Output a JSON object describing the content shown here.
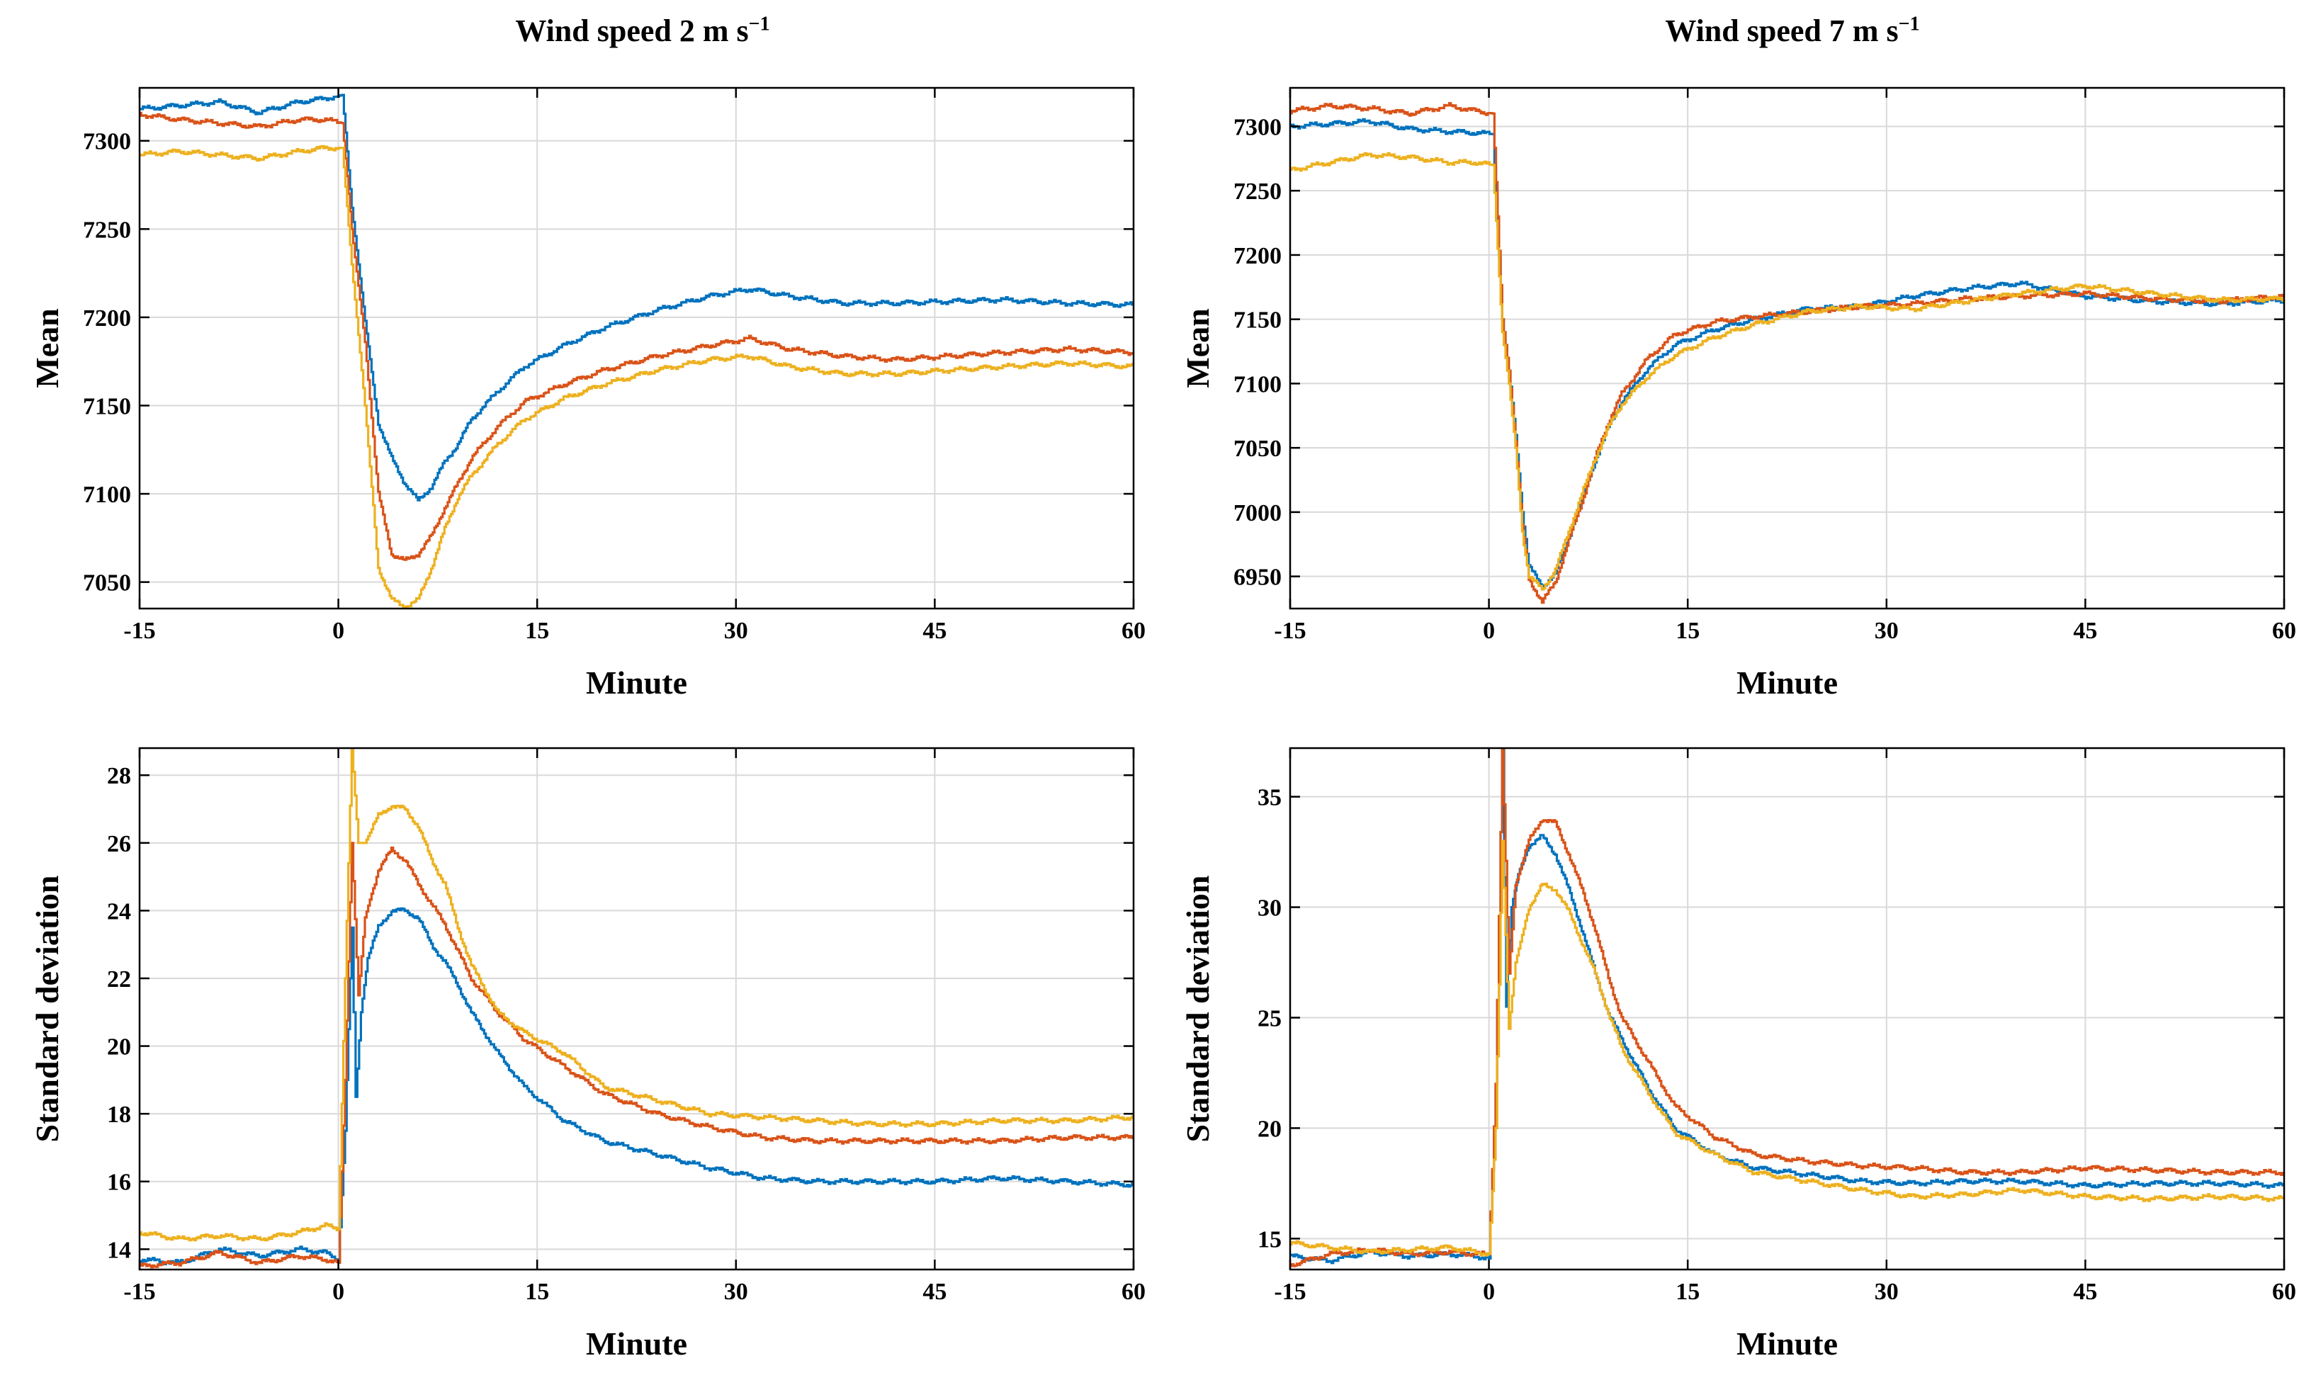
{
  "titles": {
    "left_prefix": "Wind speed 2 m s",
    "right_prefix": "Wind speed 7 m s",
    "unit_exponent": "−1"
  },
  "colors": {
    "blue": "#0072BD",
    "orange": "#D95319",
    "yellow": "#EDB120",
    "grid": "#d9d9d9",
    "axis": "#000000"
  },
  "chart_data": [
    {
      "id": "mean-2ms",
      "type": "line",
      "title": "Wind speed 2 m s−1",
      "xlabel": "Minute",
      "ylabel": "Mean",
      "xlim": [
        -15,
        60
      ],
      "ylim": [
        7035,
        7330
      ],
      "xticks": [
        -15,
        0,
        15,
        30,
        45,
        60
      ],
      "yticks": [
        7050,
        7100,
        7150,
        7200,
        7250,
        7300
      ],
      "grid": true,
      "series": [
        {
          "name": "blue",
          "color": "#0072BD",
          "x": [
            -15,
            -12,
            -9,
            -6,
            -3,
            -1,
            0.3,
            1,
            2,
            3,
            4,
            5,
            6,
            7,
            8,
            9,
            10,
            12,
            14,
            17,
            20,
            24,
            28,
            31,
            34,
            38,
            42,
            46,
            50,
            55,
            60
          ],
          "y": [
            7318,
            7320,
            7322,
            7316,
            7322,
            7324,
            7326,
            7262,
            7198,
            7140,
            7120,
            7106,
            7096,
            7104,
            7118,
            7128,
            7142,
            7158,
            7172,
            7184,
            7194,
            7204,
            7212,
            7216,
            7212,
            7208,
            7208,
            7209,
            7210,
            7208,
            7207
          ]
        },
        {
          "name": "orange",
          "color": "#D95319",
          "x": [
            -15,
            -12,
            -9,
            -6,
            -3,
            -1,
            0.3,
            1,
            2,
            3,
            4,
            5,
            6,
            7,
            8,
            9,
            10,
            12,
            14,
            17,
            20,
            24,
            28,
            31,
            34,
            38,
            42,
            46,
            50,
            55,
            60
          ],
          "y": [
            7315,
            7312,
            7310,
            7308,
            7312,
            7312,
            7310,
            7250,
            7186,
            7100,
            7066,
            7062,
            7066,
            7076,
            7092,
            7106,
            7120,
            7138,
            7152,
            7162,
            7170,
            7178,
            7184,
            7188,
            7182,
            7178,
            7176,
            7178,
            7180,
            7182,
            7180
          ]
        },
        {
          "name": "yellow",
          "color": "#EDB120",
          "x": [
            -15,
            -12,
            -9,
            -6,
            -3,
            -1,
            0.3,
            1,
            2,
            3,
            4,
            5,
            6,
            7,
            8,
            9,
            10,
            12,
            14,
            17,
            20,
            24,
            28,
            31,
            34,
            38,
            42,
            46,
            50,
            55,
            60
          ],
          "y": [
            7292,
            7294,
            7292,
            7290,
            7294,
            7296,
            7296,
            7230,
            7150,
            7058,
            7040,
            7036,
            7040,
            7058,
            7080,
            7098,
            7110,
            7128,
            7142,
            7154,
            7162,
            7170,
            7176,
            7178,
            7172,
            7168,
            7168,
            7170,
            7172,
            7174,
            7172
          ]
        }
      ]
    },
    {
      "id": "mean-7ms",
      "type": "line",
      "title": "Wind speed 7 m s−1",
      "xlabel": "Minute",
      "ylabel": "Mean",
      "xlim": [
        -15,
        60
      ],
      "ylim": [
        6925,
        7330
      ],
      "xticks": [
        -15,
        0,
        15,
        30,
        45,
        60
      ],
      "yticks": [
        6950,
        7000,
        7050,
        7100,
        7150,
        7200,
        7250,
        7300
      ],
      "grid": true,
      "series": [
        {
          "name": "blue",
          "color": "#0072BD",
          "x": [
            -15,
            -12,
            -9,
            -6,
            -3,
            -1,
            0.3,
            1,
            1.5,
            2,
            2.5,
            3,
            4,
            5,
            6,
            7,
            8,
            9,
            10,
            12,
            14,
            17,
            20,
            24,
            28,
            32,
            36,
            40,
            45,
            50,
            55,
            60
          ],
          "y": [
            7300,
            7302,
            7304,
            7298,
            7296,
            7295,
            7294,
            7150,
            7110,
            7060,
            7000,
            6958,
            6942,
            6952,
            6980,
            7010,
            7040,
            7066,
            7086,
            7112,
            7130,
            7142,
            7150,
            7158,
            7160,
            7168,
            7174,
            7178,
            7168,
            7164,
            7162,
            7165
          ]
        },
        {
          "name": "orange",
          "color": "#D95319",
          "x": [
            -15,
            -12,
            -9,
            -6,
            -3,
            -1,
            0.3,
            1,
            1.5,
            2,
            2.5,
            3,
            4,
            5,
            6,
            7,
            8,
            9,
            10,
            12,
            14,
            17,
            20,
            24,
            28,
            32,
            36,
            40,
            45,
            50,
            55,
            60
          ],
          "y": [
            7312,
            7316,
            7314,
            7310,
            7316,
            7312,
            7310,
            7150,
            7110,
            7055,
            6990,
            6948,
            6930,
            6946,
            6978,
            7008,
            7042,
            7070,
            7092,
            7120,
            7138,
            7148,
            7152,
            7156,
            7160,
            7162,
            7166,
            7168,
            7170,
            7166,
            7164,
            7168
          ]
        },
        {
          "name": "yellow",
          "color": "#EDB120",
          "x": [
            -15,
            -12,
            -9,
            -6,
            -3,
            -1,
            0.3,
            1,
            1.5,
            2,
            2.5,
            3,
            4,
            5,
            6,
            7,
            8,
            9,
            10,
            12,
            14,
            17,
            20,
            24,
            28,
            32,
            36,
            40,
            45,
            50,
            55,
            60
          ],
          "y": [
            7266,
            7272,
            7278,
            7276,
            7272,
            7272,
            7270,
            7140,
            7100,
            7050,
            6985,
            6950,
            6940,
            6955,
            6985,
            7014,
            7042,
            7066,
            7084,
            7106,
            7122,
            7136,
            7146,
            7156,
            7160,
            7158,
            7164,
            7170,
            7176,
            7170,
            7165,
            7166
          ]
        }
      ]
    },
    {
      "id": "std-2ms",
      "type": "line",
      "title": "",
      "xlabel": "Minute",
      "ylabel": "Standard deviation",
      "xlim": [
        -15,
        60
      ],
      "ylim": [
        13.4,
        28.8
      ],
      "xticks": [
        -15,
        0,
        15,
        30,
        45,
        60
      ],
      "yticks": [
        14,
        16,
        18,
        20,
        22,
        24,
        26,
        28
      ],
      "grid": true,
      "series": [
        {
          "name": "blue",
          "color": "#0072BD",
          "x": [
            -15,
            -12,
            -9,
            -6,
            -3,
            -1,
            0,
            0.5,
            1,
            1.3,
            1.7,
            2.2,
            3,
            4,
            5,
            6,
            7,
            8,
            9,
            10,
            12,
            14,
            17,
            20,
            24,
            28,
            32,
            36,
            40,
            45,
            50,
            55,
            60
          ],
          "y": [
            13.7,
            13.6,
            14.0,
            13.8,
            14.0,
            13.9,
            13.7,
            17.5,
            23.5,
            18.5,
            21.0,
            22.6,
            23.5,
            24.0,
            24.0,
            23.8,
            23.0,
            22.5,
            21.8,
            21.0,
            19.8,
            18.8,
            17.8,
            17.2,
            16.8,
            16.4,
            16.1,
            16.0,
            16.0,
            16.0,
            16.1,
            16.0,
            15.9
          ]
        },
        {
          "name": "orange",
          "color": "#D95319",
          "x": [
            -15,
            -12,
            -9,
            -6,
            -3,
            -1,
            0,
            0.5,
            1,
            1.5,
            2,
            3,
            4,
            5,
            6,
            7,
            8,
            9,
            10,
            12,
            14,
            17,
            20,
            24,
            28,
            32,
            36,
            40,
            45,
            50,
            55,
            60
          ],
          "y": [
            13.5,
            13.6,
            13.9,
            13.6,
            13.8,
            13.7,
            13.6,
            19.0,
            26.0,
            21.5,
            23.8,
            25.2,
            25.8,
            25.5,
            24.8,
            24.2,
            23.6,
            22.8,
            22.0,
            21.0,
            20.2,
            19.4,
            18.6,
            18.0,
            17.6,
            17.3,
            17.2,
            17.2,
            17.2,
            17.2,
            17.3,
            17.3
          ]
        },
        {
          "name": "yellow",
          "color": "#EDB120",
          "x": [
            -15,
            -12,
            -9,
            -6,
            -3,
            -1,
            0,
            0.5,
            1,
            1.5,
            2,
            3,
            4,
            5,
            6,
            7,
            8,
            9,
            10,
            12,
            14,
            17,
            20,
            24,
            28,
            32,
            36,
            40,
            45,
            50,
            55,
            60
          ],
          "y": [
            14.5,
            14.3,
            14.4,
            14.3,
            14.5,
            14.7,
            14.6,
            22.0,
            28.8,
            26.0,
            26.0,
            26.8,
            27.1,
            27.0,
            26.5,
            25.5,
            24.8,
            23.5,
            22.4,
            21.0,
            20.4,
            19.8,
            18.8,
            18.4,
            18.0,
            17.9,
            17.8,
            17.7,
            17.7,
            17.8,
            17.8,
            17.9
          ]
        }
      ]
    },
    {
      "id": "std-7ms",
      "type": "line",
      "title": "",
      "xlabel": "Minute",
      "ylabel": "Standard deviation",
      "xlim": [
        -15,
        60
      ],
      "ylim": [
        13.6,
        37.2
      ],
      "xticks": [
        -15,
        0,
        15,
        30,
        45,
        60
      ],
      "yticks": [
        15,
        20,
        25,
        30,
        35
      ],
      "grid": true,
      "series": [
        {
          "name": "blue",
          "color": "#0072BD",
          "x": [
            -15,
            -12,
            -9,
            -6,
            -3,
            -1,
            0,
            0.5,
            1,
            1.3,
            1.7,
            2.2,
            3,
            4,
            5,
            6,
            7,
            8,
            9,
            10,
            12,
            14,
            17,
            20,
            24,
            28,
            32,
            36,
            40,
            45,
            50,
            55,
            60
          ],
          "y": [
            14.2,
            14.0,
            14.4,
            14.2,
            14.3,
            14.2,
            14.1,
            22.0,
            37.2,
            25.5,
            30.0,
            31.5,
            32.8,
            33.2,
            32.4,
            30.8,
            29.0,
            27.0,
            25.2,
            24.0,
            21.8,
            20.0,
            18.8,
            18.2,
            17.9,
            17.6,
            17.5,
            17.6,
            17.6,
            17.4,
            17.5,
            17.5,
            17.4
          ]
        },
        {
          "name": "orange",
          "color": "#D95319",
          "x": [
            -15,
            -12,
            -9,
            -6,
            -3,
            -1,
            0,
            0.5,
            1,
            1.5,
            2,
            3,
            4,
            5,
            6,
            7,
            8,
            9,
            10,
            12,
            14,
            17,
            20,
            24,
            28,
            32,
            36,
            40,
            45,
            50,
            55,
            60
          ],
          "y": [
            13.8,
            14.3,
            14.5,
            14.3,
            14.4,
            14.3,
            14.3,
            22.0,
            37.2,
            27.0,
            31.0,
            33.0,
            34.0,
            33.8,
            32.4,
            30.8,
            29.0,
            26.8,
            25.0,
            23.0,
            21.0,
            19.6,
            18.8,
            18.5,
            18.3,
            18.2,
            18.0,
            18.0,
            18.2,
            18.1,
            18.0,
            18.0
          ]
        },
        {
          "name": "yellow",
          "color": "#EDB120",
          "x": [
            -15,
            -12,
            -9,
            -6,
            -3,
            -1,
            0,
            0.5,
            1,
            1.5,
            2,
            3,
            4,
            5,
            6,
            7,
            8,
            9,
            10,
            12,
            14,
            17,
            20,
            24,
            28,
            32,
            36,
            40,
            45,
            50,
            55,
            60
          ],
          "y": [
            14.8,
            14.6,
            14.4,
            14.5,
            14.6,
            14.4,
            14.3,
            20.0,
            33.0,
            24.5,
            27.5,
            30.0,
            31.0,
            30.8,
            29.8,
            28.4,
            27.0,
            25.2,
            23.6,
            21.6,
            19.8,
            18.8,
            18.0,
            17.6,
            17.2,
            16.9,
            17.0,
            17.2,
            16.9,
            16.8,
            16.9,
            16.8
          ]
        }
      ]
    }
  ]
}
